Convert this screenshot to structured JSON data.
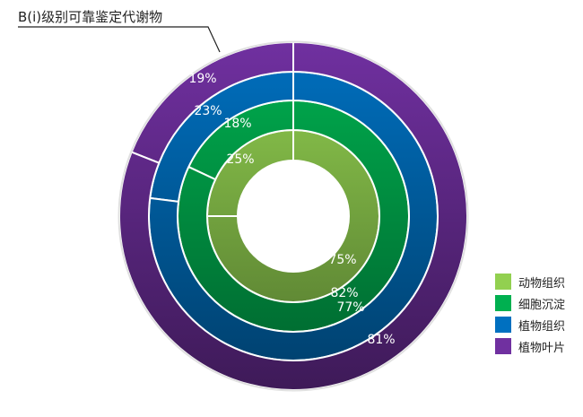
{
  "chart_data": {
    "type": "doughnut",
    "title": "B(i)级别可靠鉴定代谢物",
    "legend_position": "right-bottom",
    "series": [
      {
        "name": "动物组织",
        "color": "#92D050",
        "values": [
          25,
          75
        ],
        "labels": [
          "25%",
          "75%"
        ]
      },
      {
        "name": "细胞沉淀",
        "color": "#00B050",
        "values": [
          18,
          82
        ],
        "labels": [
          "18%",
          "82%"
        ]
      },
      {
        "name": "植物组织",
        "color": "#0070C0",
        "values": [
          23,
          77
        ],
        "labels": [
          "23%",
          "77%"
        ]
      },
      {
        "name": "植物叶片",
        "color": "#7030A0",
        "values": [
          19,
          81
        ],
        "labels": [
          "19%",
          "81%"
        ]
      }
    ]
  }
}
